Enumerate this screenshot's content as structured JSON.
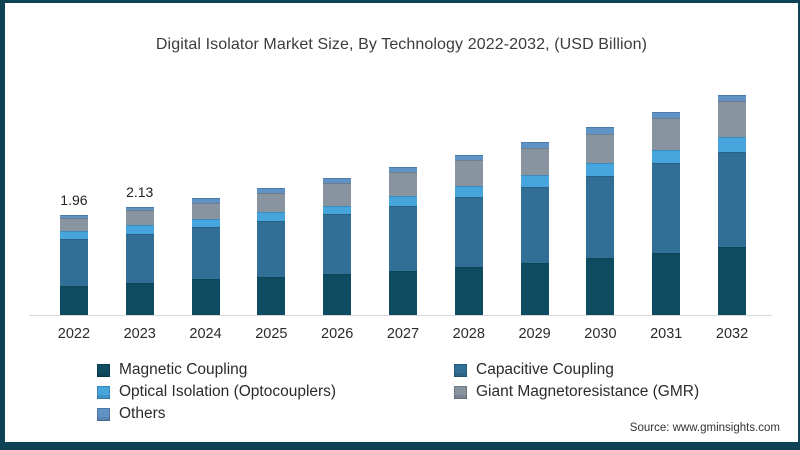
{
  "title": "Digital Isolator Market Size, By Technology 2022-2032, (USD Billion)",
  "source": "Source: www.gminsights.com",
  "colors": {
    "frame_border": "#0d4355",
    "magnetic": "#0e4b61",
    "capacitive": "#316f97",
    "optical": "#45a5dc",
    "gmr": "#8994a1",
    "others": "#6092c6",
    "axis_line": "#d8d8d8",
    "title_text": "#3c3c3c"
  },
  "chart_data": {
    "type": "bar",
    "stacked": true,
    "title": "Digital Isolator Market Size, By Technology 2022-2032, (USD Billion)",
    "unit": "USD Billion",
    "categories": [
      "2022",
      "2023",
      "2024",
      "2025",
      "2026",
      "2027",
      "2028",
      "2029",
      "2030",
      "2031",
      "2032"
    ],
    "series": [
      {
        "name": "Magnetic Coupling",
        "color_key": "magnetic",
        "values": [
          0.57,
          0.63,
          0.7,
          0.75,
          0.8,
          0.87,
          0.95,
          1.03,
          1.12,
          1.22,
          1.33
        ]
      },
      {
        "name": "Capacitive Coupling",
        "color_key": "capacitive",
        "values": [
          0.92,
          0.97,
          1.03,
          1.1,
          1.18,
          1.28,
          1.38,
          1.49,
          1.61,
          1.76,
          1.88
        ]
      },
      {
        "name": "Optical Isolation (Optocouplers)",
        "color_key": "optical",
        "values": [
          0.17,
          0.17,
          0.16,
          0.17,
          0.17,
          0.19,
          0.21,
          0.23,
          0.25,
          0.26,
          0.29
        ]
      },
      {
        "name": "Giant Magnetoresistance (GMR)",
        "color_key": "gmr",
        "values": [
          0.25,
          0.29,
          0.32,
          0.38,
          0.44,
          0.47,
          0.5,
          0.54,
          0.58,
          0.64,
          0.71
        ]
      },
      {
        "name": "Others",
        "color_key": "others",
        "values": [
          0.05,
          0.07,
          0.09,
          0.09,
          0.1,
          0.1,
          0.11,
          0.12,
          0.13,
          0.11,
          0.11
        ]
      }
    ],
    "totals": [
      1.96,
      2.13,
      2.3,
      2.49,
      2.69,
      2.91,
      3.15,
      3.41,
      3.69,
      3.99,
      4.32
    ],
    "data_labels": {
      "2022": "1.96",
      "2023": "2.13"
    },
    "ylim": [
      0,
      4.6
    ],
    "grid": false,
    "legend_position": "bottom"
  },
  "legend": {
    "items": [
      {
        "label": "Magnetic Coupling",
        "color_key": "magnetic"
      },
      {
        "label": "Capacitive Coupling",
        "color_key": "capacitive"
      },
      {
        "label": "Optical Isolation (Optocouplers)",
        "color_key": "optical"
      },
      {
        "label": "Giant Magnetoresistance (GMR)",
        "color_key": "gmr"
      },
      {
        "label": "Others",
        "color_key": "others"
      }
    ]
  }
}
